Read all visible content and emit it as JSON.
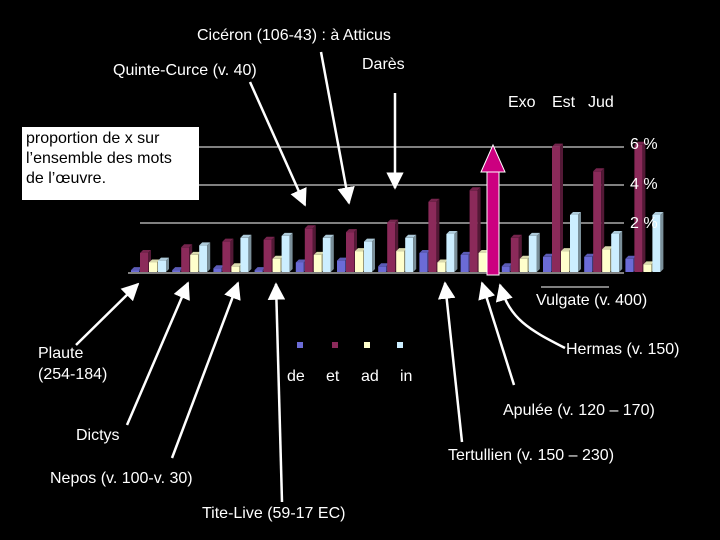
{
  "colors": {
    "background": "#000000",
    "de": "#6b6bd6",
    "et": "#8b2a5a",
    "ad": "#ffffcc",
    "in": "#cceeff",
    "arrow_highlight": "#cc0080"
  },
  "labels": {
    "ciceron": "Cicéron (106-43) : à Atticus",
    "quinte": "Quinte-Curce (v. 40)",
    "dares": "Darès",
    "exo": "Exo",
    "est": "Est",
    "jud": "Jud",
    "vulgate": "Vulgate (v. 400)",
    "hermas": "Hermas (v. 150)",
    "apulee": "Apulée (v. 120 – 170)",
    "tertullien": "Tertullien (v. 150 – 230)",
    "plaute": "Plaute",
    "plaute_dates": "(254-184)",
    "dictys": "Dictys",
    "nepos": "Nepos (v. 100-v. 30)",
    "tite_live": "Tite-Live (59-17 EC)"
  },
  "note": {
    "line1": "proportion de x sur",
    "line2": "l’ensemble des mots",
    "line3": "de l’œuvre."
  },
  "chart_data": {
    "type": "bar",
    "categories": [
      "Plaute",
      "Dictys",
      "Nepos",
      "Tite-Live",
      "Quinte-Curce",
      "Cicéron : à Atticus",
      "Darès",
      "Tertullien",
      "Apulée",
      "Hermas",
      "Vulgate : Exo",
      "Vulgate : Est",
      "Vulgate : Jud"
    ],
    "series": [
      {
        "name": "de",
        "values": [
          0.1,
          0.1,
          0.2,
          0.1,
          0.5,
          0.6,
          0.3,
          1.0,
          0.9,
          0.3,
          0.8,
          0.8,
          0.7
        ]
      },
      {
        "name": "et",
        "values": [
          1.0,
          1.3,
          1.6,
          1.7,
          2.3,
          2.1,
          2.6,
          3.7,
          4.3,
          1.8,
          6.6,
          5.3,
          6.7
        ]
      },
      {
        "name": "ad",
        "values": [
          0.5,
          0.9,
          0.3,
          0.7,
          0.9,
          1.1,
          1.1,
          0.5,
          1.0,
          0.7,
          1.1,
          1.2,
          0.4
        ]
      },
      {
        "name": "in",
        "values": [
          0.6,
          1.4,
          1.8,
          1.9,
          1.8,
          1.6,
          1.8,
          2.0,
          1.9,
          1.9,
          3.0,
          2.0,
          3.0
        ]
      }
    ],
    "y_ticks": [
      "2 %",
      "4 %",
      "6 %"
    ],
    "ylim": [
      0,
      7
    ],
    "legend": [
      "de",
      "et",
      "ad",
      "in"
    ],
    "legend_placement": "bottom-center"
  }
}
